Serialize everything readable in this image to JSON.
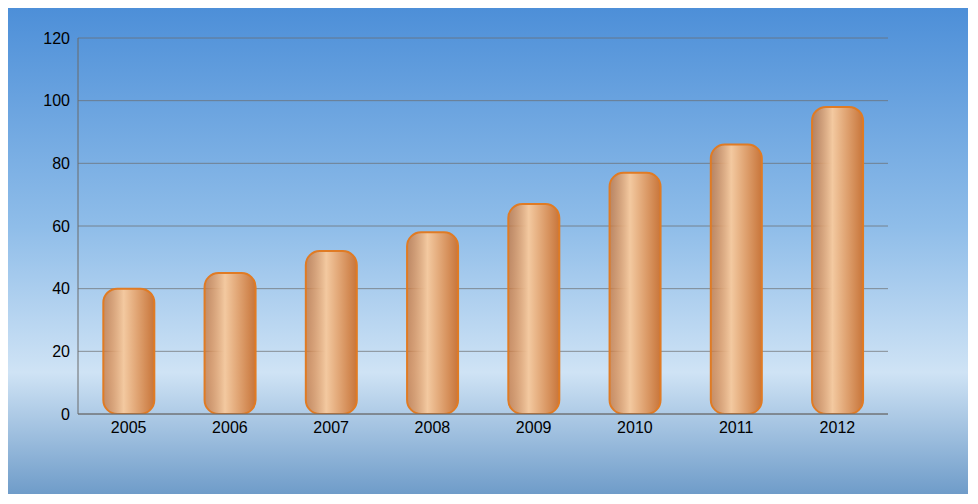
{
  "chart_data": {
    "type": "bar",
    "categories": [
      "2005",
      "2006",
      "2007",
      "2008",
      "2009",
      "2010",
      "2011",
      "2012"
    ],
    "values": [
      40,
      45,
      52,
      58,
      67,
      77,
      86,
      98
    ],
    "color": "#c8753a",
    "ylim": [
      0,
      120
    ],
    "yticks": [
      0,
      20,
      40,
      60,
      80,
      100,
      120
    ],
    "grid": true
  }
}
